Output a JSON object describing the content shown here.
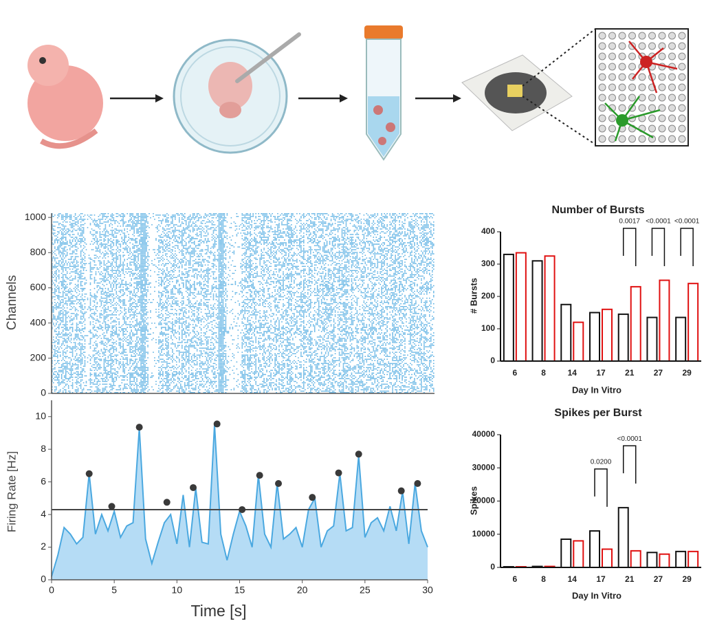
{
  "chart_data": [
    {
      "type": "raster",
      "ylabel": "Channels",
      "xlim": [
        0,
        30
      ],
      "ylim": [
        0,
        1024
      ],
      "yticks": [
        0,
        200,
        400,
        600,
        800,
        1000
      ],
      "color": "#4aa8e0"
    },
    {
      "type": "line",
      "xlabel": "Time [s]",
      "ylabel": "Firing Rate [Hz]",
      "xlim": [
        0,
        30
      ],
      "ylim": [
        0,
        11
      ],
      "xticks": [
        0,
        5,
        10,
        15,
        20,
        25,
        30
      ],
      "yticks": [
        0,
        2,
        4,
        6,
        8,
        10
      ],
      "threshold": 4.3,
      "color": "#4aa8e0",
      "fill": "#b5dcf5",
      "x": [
        0,
        0.5,
        1,
        1.5,
        2,
        2.5,
        3,
        3.5,
        4,
        4.5,
        5,
        5.5,
        6,
        6.5,
        7,
        7.5,
        8,
        8.5,
        9,
        9.5,
        10,
        10.5,
        11,
        11.5,
        12,
        12.5,
        13,
        13.5,
        14,
        14.5,
        15,
        15.5,
        16,
        16.5,
        17,
        17.5,
        18,
        18.5,
        19,
        19.5,
        20,
        20.5,
        21,
        21.5,
        22,
        22.5,
        23,
        23.5,
        24,
        24.5,
        25,
        25.5,
        26,
        26.5,
        27,
        27.5,
        28,
        28.5,
        29,
        29.5,
        30
      ],
      "values": [
        0.2,
        1.5,
        3.2,
        2.8,
        2.2,
        2.6,
        6.5,
        2.8,
        4.0,
        3.0,
        4.2,
        2.6,
        3.3,
        3.5,
        9.3,
        2.5,
        1.0,
        2.3,
        3.5,
        4.0,
        2.2,
        5.2,
        2.0,
        5.6,
        2.3,
        2.2,
        9.5,
        2.8,
        1.2,
        2.8,
        4.2,
        3.3,
        2.0,
        6.4,
        2.8,
        2.0,
        5.9,
        2.5,
        2.8,
        3.2,
        2.0,
        4.3,
        5.0,
        2.0,
        3.0,
        3.3,
        6.5,
        3.0,
        3.2,
        7.6,
        2.6,
        3.5,
        3.8,
        3.0,
        4.5,
        3.0,
        5.4,
        2.2,
        5.9,
        3.0,
        2.0
      ],
      "peaks_x": [
        3,
        4.8,
        7,
        9.2,
        11.3,
        13.2,
        15.2,
        16.6,
        18.1,
        20.8,
        22.9,
        24.5,
        27.9,
        29.2
      ],
      "peaks": [
        6.5,
        4.5,
        9.35,
        4.75,
        5.65,
        9.55,
        4.3,
        6.4,
        5.9,
        5.05,
        6.55,
        7.7,
        5.45,
        5.9
      ]
    },
    {
      "type": "bar",
      "title": "Number of Bursts",
      "xlabel": "Day In Vitro",
      "ylabel": "# Bursts",
      "categories": [
        "6",
        "8",
        "14",
        "17",
        "21",
        "27",
        "29"
      ],
      "ylim": [
        0,
        400
      ],
      "yticks": [
        0,
        100,
        200,
        300,
        400
      ],
      "series": [
        {
          "color": "#111111",
          "values": [
            330,
            310,
            175,
            150,
            145,
            135,
            135
          ]
        },
        {
          "color": "#e01010",
          "values": [
            335,
            325,
            120,
            160,
            230,
            250,
            240
          ]
        }
      ],
      "annotations": [
        {
          "category": "21",
          "label": "0.0017"
        },
        {
          "category": "27",
          "label": "<0.0001"
        },
        {
          "category": "29",
          "label": "<0.0001"
        }
      ]
    },
    {
      "type": "bar",
      "title": "Spikes per Burst",
      "xlabel": "Day In Vitro",
      "ylabel": "Spikes",
      "categories": [
        "6",
        "8",
        "14",
        "17",
        "21",
        "27",
        "29"
      ],
      "ylim": [
        0,
        40000
      ],
      "yticks": [
        0,
        10000,
        20000,
        30000,
        40000
      ],
      "series": [
        {
          "color": "#111111",
          "values": [
            200,
            300,
            8500,
            11000,
            18000,
            4500,
            4800
          ]
        },
        {
          "color": "#e01010",
          "values": [
            200,
            300,
            8000,
            5500,
            5000,
            4000,
            4800
          ]
        }
      ],
      "annotations": [
        {
          "category": "17",
          "label": "0.0200"
        },
        {
          "category": "21",
          "label": "<0.0001"
        }
      ]
    }
  ]
}
